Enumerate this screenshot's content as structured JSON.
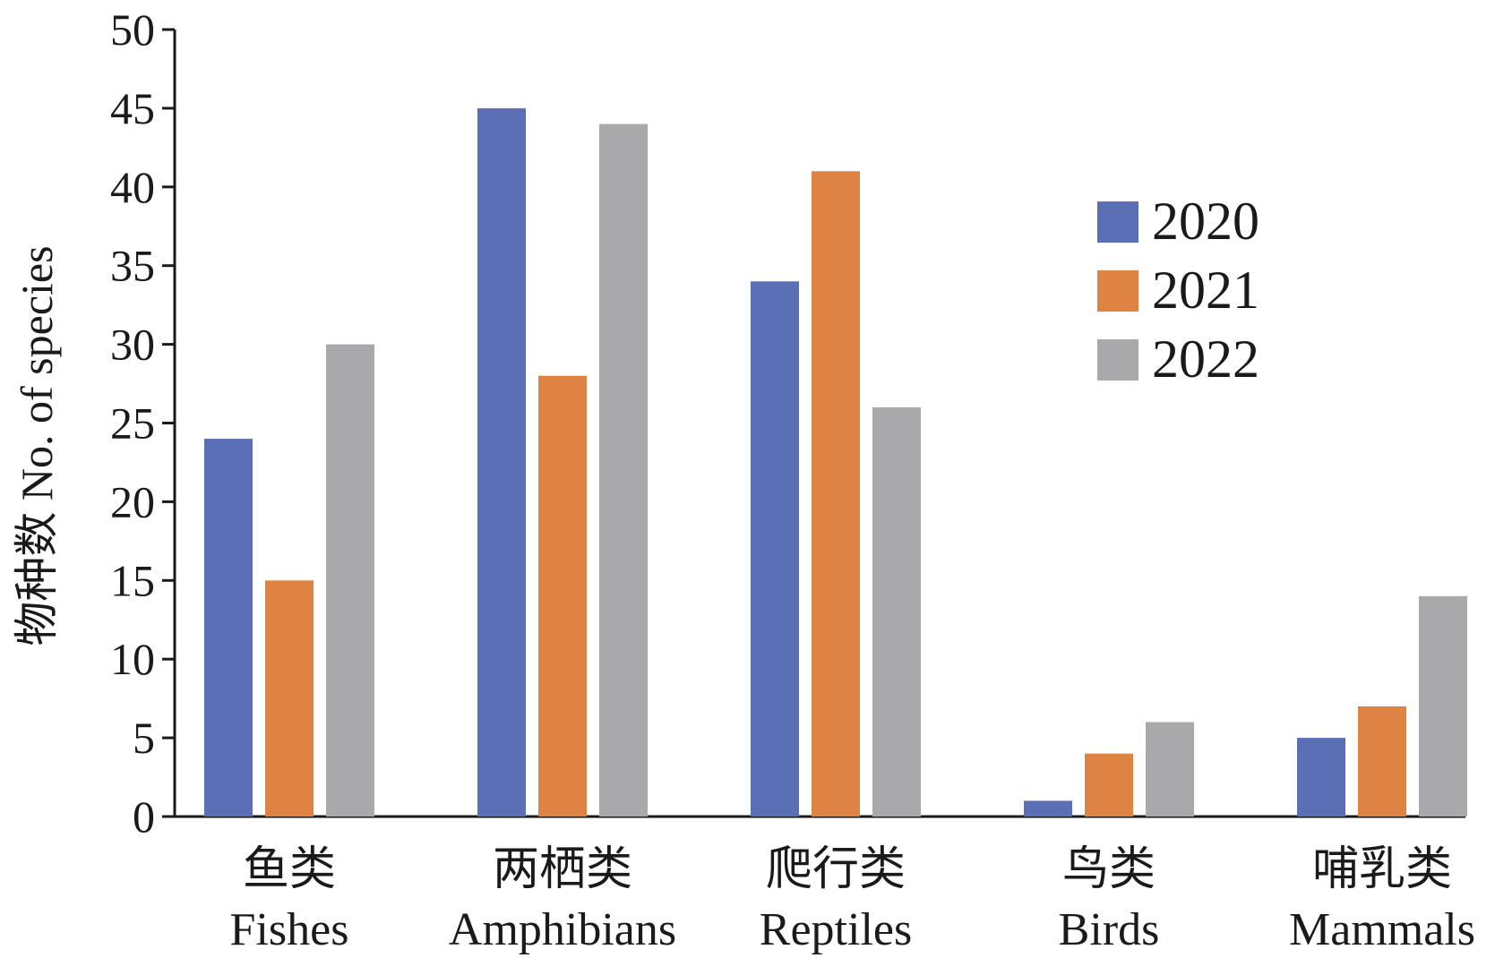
{
  "chart_data": {
    "type": "bar",
    "ylabel": "物种数 No. of species",
    "ylim": [
      0,
      50
    ],
    "yticks": [
      0,
      5,
      10,
      15,
      20,
      25,
      30,
      35,
      40,
      45,
      50
    ],
    "categories": [
      {
        "zh": "鱼类",
        "en": "Fishes"
      },
      {
        "zh": "两栖类",
        "en": "Amphibians"
      },
      {
        "zh": "爬行类",
        "en": "Reptiles"
      },
      {
        "zh": "鸟类",
        "en": "Birds"
      },
      {
        "zh": "哺乳类",
        "en": "Mammals"
      }
    ],
    "series": [
      {
        "name": "2020",
        "color": "#5b6fb7",
        "values": [
          24,
          45,
          34,
          1,
          5
        ]
      },
      {
        "name": "2021",
        "color": "#df8343",
        "values": [
          15,
          28,
          41,
          4,
          7
        ]
      },
      {
        "name": "2022",
        "color": "#a9a8ab",
        "values": [
          30,
          44,
          26,
          6,
          14
        ]
      }
    ],
    "legend_position": "top-right",
    "grid": false
  }
}
